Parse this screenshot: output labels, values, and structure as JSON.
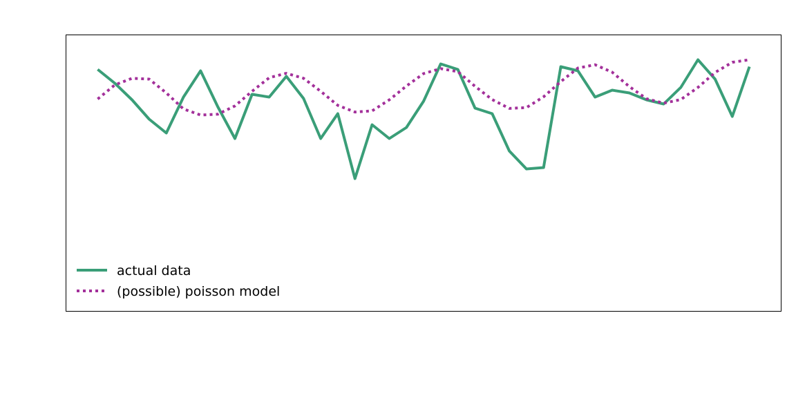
{
  "chart_data": {
    "type": "line",
    "title": "",
    "xlabel": "",
    "ylabel": "",
    "x": [
      0,
      1,
      2,
      3,
      4,
      5,
      6,
      7,
      8,
      9,
      10,
      11,
      12,
      13,
      14,
      15,
      16,
      17,
      18,
      19,
      20,
      21,
      22,
      23,
      24,
      25,
      26,
      27,
      28,
      29,
      30,
      31,
      32,
      33,
      34,
      35,
      36,
      37,
      38
    ],
    "xlim": [
      -1.85,
      39.85
    ],
    "ylim": [
      0,
      100
    ],
    "grid": false,
    "axes_visible": false,
    "legend_position": "lower-left",
    "series": [
      {
        "name": "actual data",
        "style": "solid",
        "color": "#3a9e78",
        "values": [
          87.5,
          82.5,
          76.5,
          69.5,
          64.5,
          77.5,
          87.0,
          74.0,
          62.5,
          78.5,
          77.5,
          85.0,
          77.0,
          62.5,
          71.5,
          48.0,
          67.5,
          62.5,
          66.5,
          76.0,
          89.5,
          87.5,
          73.5,
          71.5,
          58.0,
          51.5,
          52.0,
          88.5,
          87.0,
          77.5,
          80.0,
          79.0,
          76.5,
          75.0,
          81.0,
          91.0,
          84.0,
          70.5,
          88.5
        ]
      },
      {
        "name": "(possible) poisson model",
        "style": "dotted",
        "color": "#a3309a",
        "values": [
          76.8,
          81.9,
          84.3,
          84.0,
          79.0,
          73.2,
          71.0,
          71.3,
          74.3,
          79.6,
          84.5,
          86.1,
          84.3,
          79.6,
          74.5,
          72.1,
          72.5,
          76.5,
          81.5,
          86.0,
          87.8,
          86.7,
          81.4,
          76.6,
          73.4,
          73.7,
          77.6,
          83.1,
          88.0,
          89.2,
          86.5,
          81.3,
          76.9,
          75.3,
          76.6,
          81.0,
          86.4,
          90.1,
          91.0
        ]
      }
    ]
  }
}
